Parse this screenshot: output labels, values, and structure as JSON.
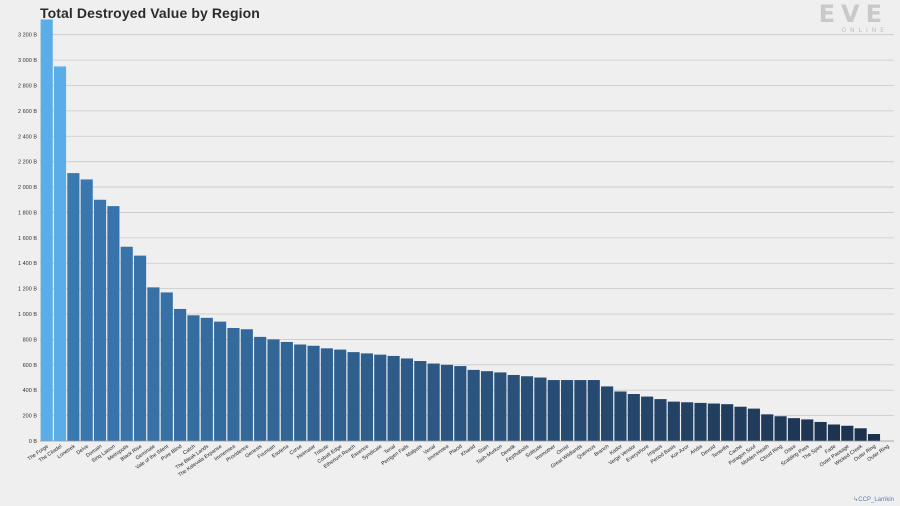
{
  "header": {
    "title": "Total Destroyed Value by Region"
  },
  "logo": {
    "main": "EVE",
    "sub": "ONLINE"
  },
  "footer": {
    "credit": "↳CCP_Larrikin"
  },
  "colors": {
    "top_bar": "#5aade6",
    "gradient_start": "#3a78b0",
    "gradient_end": "#1b2f4a",
    "grid": "#c9c9c9",
    "background": "#efefef"
  },
  "chart_data": {
    "type": "bar",
    "title": "Total Destroyed Value by Region",
    "xlabel": "",
    "ylabel": "",
    "ylim": [
      0,
      3300
    ],
    "y_ticks": [
      0,
      200,
      400,
      600,
      800,
      1000,
      1200,
      1400,
      1600,
      1800,
      2000,
      2200,
      2400,
      2600,
      2800,
      3000,
      3200
    ],
    "y_tick_labels": [
      "0 B",
      "200 B",
      "400 B",
      "600 B",
      "800 B",
      "1 000 B",
      "1 200 B",
      "1 400 B",
      "1 600 B",
      "1 800 B",
      "2 000 B",
      "2 200 B",
      "2 400 B",
      "2 600 B",
      "2 800 B",
      "3 000 B",
      "3 200 B"
    ],
    "grid": true,
    "legend": "none",
    "categories": [
      "The Forge",
      "The Citadel",
      "Lonetrek",
      "Delve",
      "Domain",
      "Sinq Laison",
      "Metropolis",
      "Black Rise",
      "Geminate",
      "Vale of the Silent",
      "Pure Blind",
      "Catch",
      "The Bleak Lands",
      "The Kalevala Expanse",
      "Immensea",
      "Providence",
      "Genesis",
      "Fountain",
      "Esoteria",
      "Curse",
      "Heimatar",
      "Tribute",
      "Cobalt Edge",
      "Etherium Reach",
      "Essence",
      "Syndicate",
      "Tenal",
      "Perrigen Falls",
      "Malpais",
      "Venal",
      "Immensea",
      "Placid",
      "Khanid",
      "Stain",
      "Tash-Murkon",
      "Derelik",
      "Feythabolis",
      "Solitude",
      "Insmother",
      "Omist",
      "Great Wildlands",
      "Querious",
      "Branch",
      "Kador",
      "Verge Vendor",
      "Everyshore",
      "Impass",
      "Period Basis",
      "Kor-Azor",
      "Aridia",
      "Devoid",
      "Tenerifis",
      "Cache",
      "Paragon Soul",
      "Molden Heath",
      "Cloud Ring",
      "Oasa",
      "Scalding Pass",
      "The Spire",
      "Fade",
      "Outer Passage",
      "Wicked Creek",
      "Outer Ring",
      "Outer Ring"
    ],
    "values": [
      3320,
      2950,
      2110,
      2060,
      1900,
      1850,
      1530,
      1460,
      1210,
      1170,
      1040,
      990,
      970,
      940,
      890,
      880,
      820,
      800,
      780,
      760,
      750,
      730,
      720,
      700,
      690,
      680,
      670,
      650,
      630,
      610,
      600,
      590,
      560,
      550,
      540,
      520,
      510,
      500,
      480,
      480,
      480,
      480,
      430,
      390,
      370,
      350,
      330,
      310,
      305,
      300,
      295,
      290,
      270,
      255,
      210,
      195,
      180,
      170,
      150,
      130,
      120,
      100,
      55,
      0
    ]
  }
}
